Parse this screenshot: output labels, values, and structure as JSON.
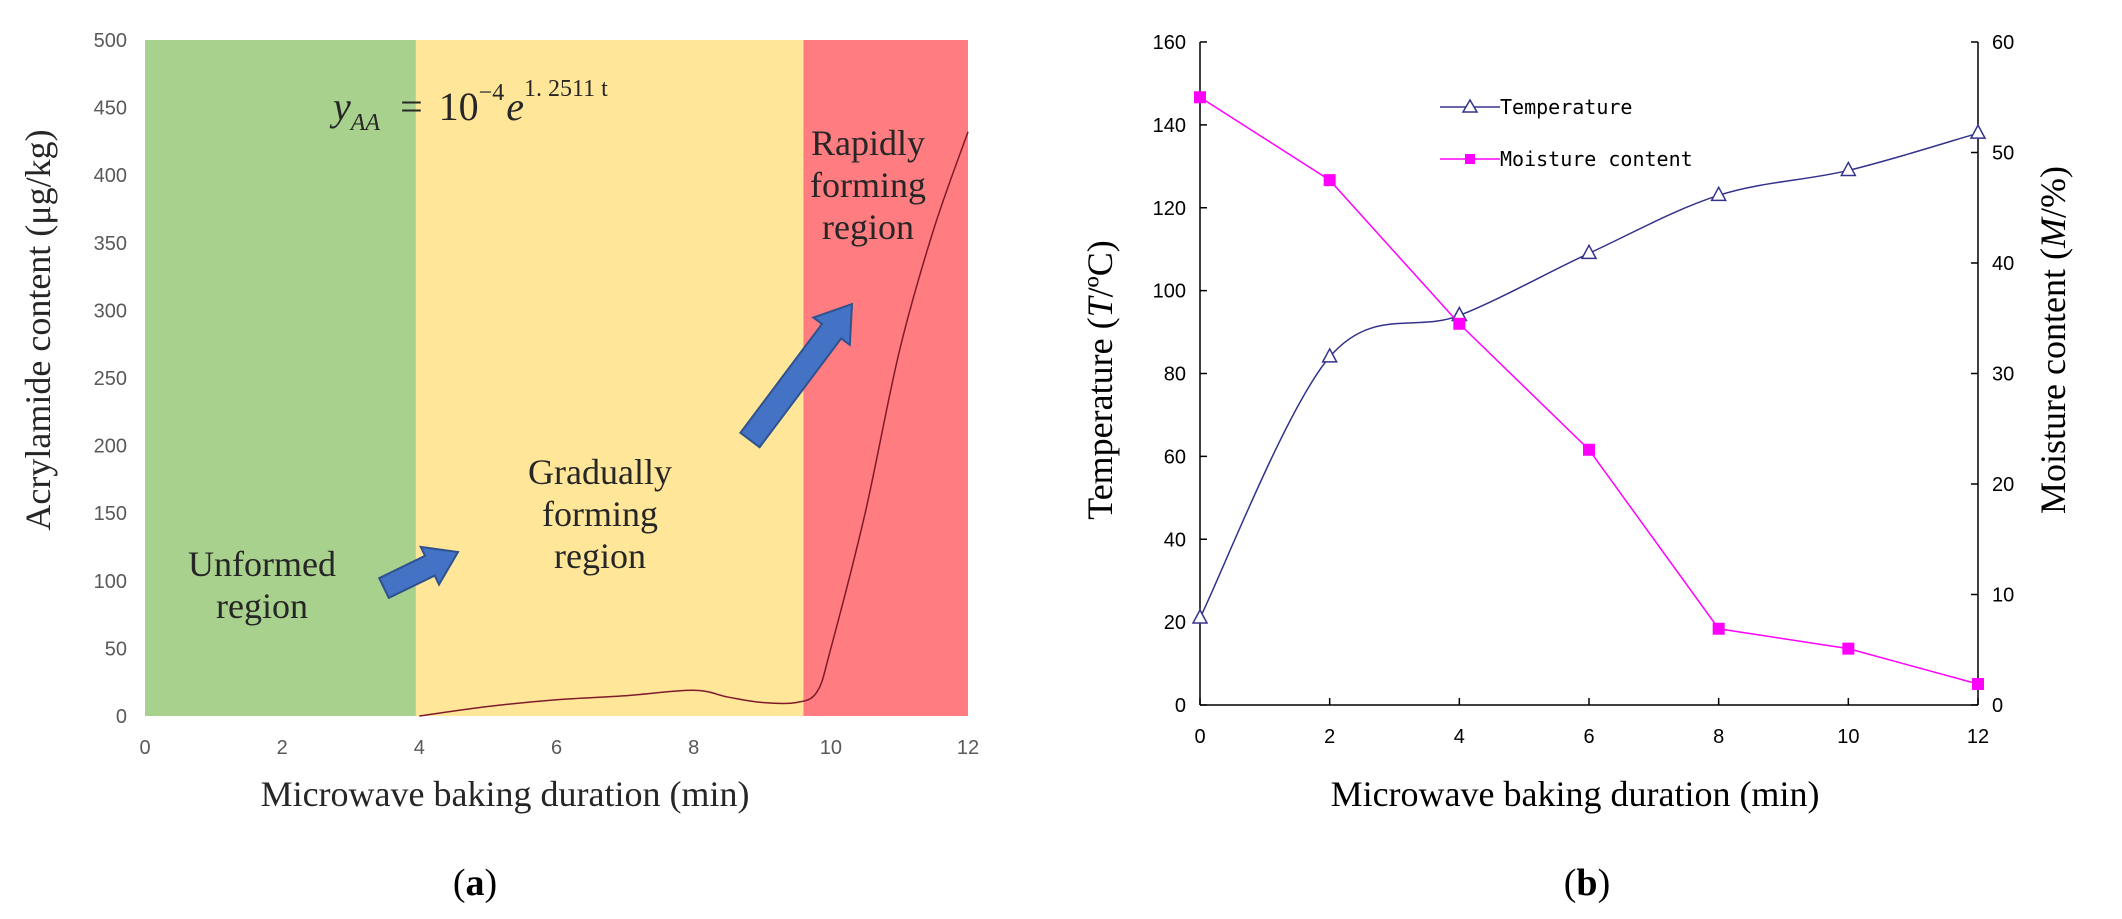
{
  "chart_data": [
    {
      "type": "line",
      "panel_label": "(a)",
      "xlabel": "Microwave baking duration (min)",
      "ylabel": "Acrylamide content (μg/kg)",
      "xlim": [
        0,
        12
      ],
      "ylim": [
        0,
        500
      ],
      "xticks": [
        0,
        2,
        4,
        6,
        8,
        10,
        12
      ],
      "yticks": [
        0,
        50,
        100,
        150,
        200,
        250,
        300,
        350,
        400,
        450,
        500
      ],
      "regions": [
        {
          "name": "Unformed region",
          "lines": [
            "Unformed",
            "region"
          ],
          "x_start": 0,
          "x_end": 3.95,
          "color": "#a9d18e"
        },
        {
          "name": "Gradually forming region",
          "lines": [
            "Gradually",
            "forming",
            "region"
          ],
          "x_start": 3.95,
          "x_end": 9.6,
          "color": "#ffe699"
        },
        {
          "name": "Rapidly forming region",
          "lines": [
            "Rapidly",
            "forming",
            "region"
          ],
          "x_start": 9.6,
          "x_end": 12,
          "color": "#ff7c80"
        }
      ],
      "equation": {
        "lhs": "y",
        "lhs_sub": "AA",
        "eq": "=",
        "base": "10",
        "base_exp": "−4",
        "e": "e",
        "e_exp": "1. 2511 t"
      },
      "series": [
        {
          "name": "Acrylamide content",
          "color": "#7f1a2a",
          "x": [
            4,
            5,
            6,
            7,
            8,
            8.5,
            9,
            9.5,
            9.8,
            10,
            10.5,
            11,
            11.5,
            12
          ],
          "values": [
            0,
            7,
            12,
            15,
            19,
            14,
            10,
            10,
            18,
            50,
            150,
            270,
            360,
            432
          ]
        }
      ]
    },
    {
      "type": "line",
      "panel_label": "(b)",
      "xlabel": "Microwave baking duration (min)",
      "ylabel_left": {
        "prefix": "Temperature (",
        "italic": "T",
        "suffix": "/ºC)"
      },
      "ylabel_right": {
        "prefix": "Moisture content (",
        "italic": "M",
        "suffix": "/%)"
      },
      "xlim": [
        0,
        12
      ],
      "ylim_left": [
        0,
        160
      ],
      "ylim_right": [
        0,
        60
      ],
      "xticks": [
        0,
        2,
        4,
        6,
        8,
        10,
        12
      ],
      "yticks_left": [
        0,
        20,
        40,
        60,
        80,
        100,
        120,
        140,
        160
      ],
      "yticks_right": [
        0,
        10,
        20,
        30,
        40,
        50,
        60
      ],
      "series": [
        {
          "name": "Temperature",
          "axis": "left",
          "marker": "triangle",
          "color": "#33338c",
          "x": [
            0,
            2,
            4,
            6,
            8,
            10,
            12
          ],
          "values": [
            21,
            84,
            94,
            109,
            123,
            129,
            138
          ]
        },
        {
          "name": "Moisture content",
          "axis": "right",
          "marker": "square",
          "color": "#ff00ff",
          "x": [
            0,
            2,
            4,
            6,
            8,
            10,
            12
          ],
          "values": [
            55,
            47.5,
            34.5,
            23.1,
            6.9,
            5.1,
            1.9
          ]
        }
      ]
    }
  ]
}
